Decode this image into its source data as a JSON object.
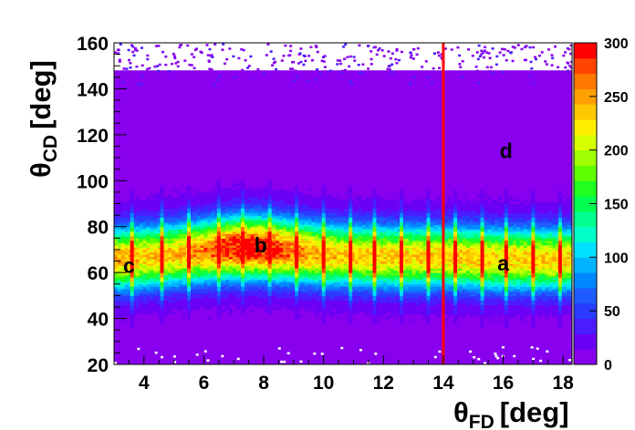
{
  "chart_data": {
    "type": "heatmap",
    "title": "",
    "xlabel": "θ",
    "xlabel_sub": "FD",
    "xlabel_unit": "[deg]",
    "ylabel": "θ",
    "ylabel_sub": "CD",
    "ylabel_unit": "[deg]",
    "xlim": [
      3.0,
      18.3
    ],
    "ylim": [
      20,
      160
    ],
    "x_ticks": [
      4,
      6,
      8,
      10,
      12,
      14,
      16,
      18
    ],
    "y_ticks": [
      20,
      40,
      60,
      80,
      100,
      120,
      140,
      160
    ],
    "colorbar": {
      "range": [
        0,
        300
      ],
      "ticks": [
        0,
        50,
        100,
        150,
        200,
        250,
        300
      ],
      "palette": [
        "#8800ee",
        "#6a00f4",
        "#4a1cff",
        "#2a3cff",
        "#1f5cff",
        "#0088ff",
        "#00b4ff",
        "#00e0ff",
        "#00ffc8",
        "#00ff90",
        "#00ff50",
        "#20ff20",
        "#60ff00",
        "#a0ff00",
        "#d8ff00",
        "#ffee00",
        "#ffc800",
        "#ffa000",
        "#ff7800",
        "#ff4400",
        "#ff0000"
      ]
    },
    "grid": false,
    "vertical_line": {
      "x": 14,
      "color": "#ff0000"
    },
    "band": {
      "description_free": true,
      "center_points": [
        [
          3.2,
          66
        ],
        [
          5,
          68
        ],
        [
          7,
          71
        ],
        [
          8,
          71
        ],
        [
          10,
          68
        ],
        [
          12,
          67
        ],
        [
          14,
          67
        ],
        [
          16,
          66
        ],
        [
          18,
          66
        ]
      ],
      "sigma_deg": 9,
      "peak_counts": 300
    },
    "stripe_x": [
      3.6,
      4.6,
      5.5,
      6.5,
      7.3,
      8.2,
      9.1,
      10.0,
      10.9,
      11.7,
      12.6,
      13.5,
      14.4,
      15.3,
      16.1,
      17.0,
      17.9
    ],
    "annotations": [
      {
        "text": "a",
        "x": 16.0,
        "y": 64
      },
      {
        "text": "b",
        "x": 7.9,
        "y": 72
      },
      {
        "text": "c",
        "x": 3.5,
        "y": 63
      },
      {
        "text": "d",
        "x": 16.1,
        "y": 113
      }
    ]
  }
}
